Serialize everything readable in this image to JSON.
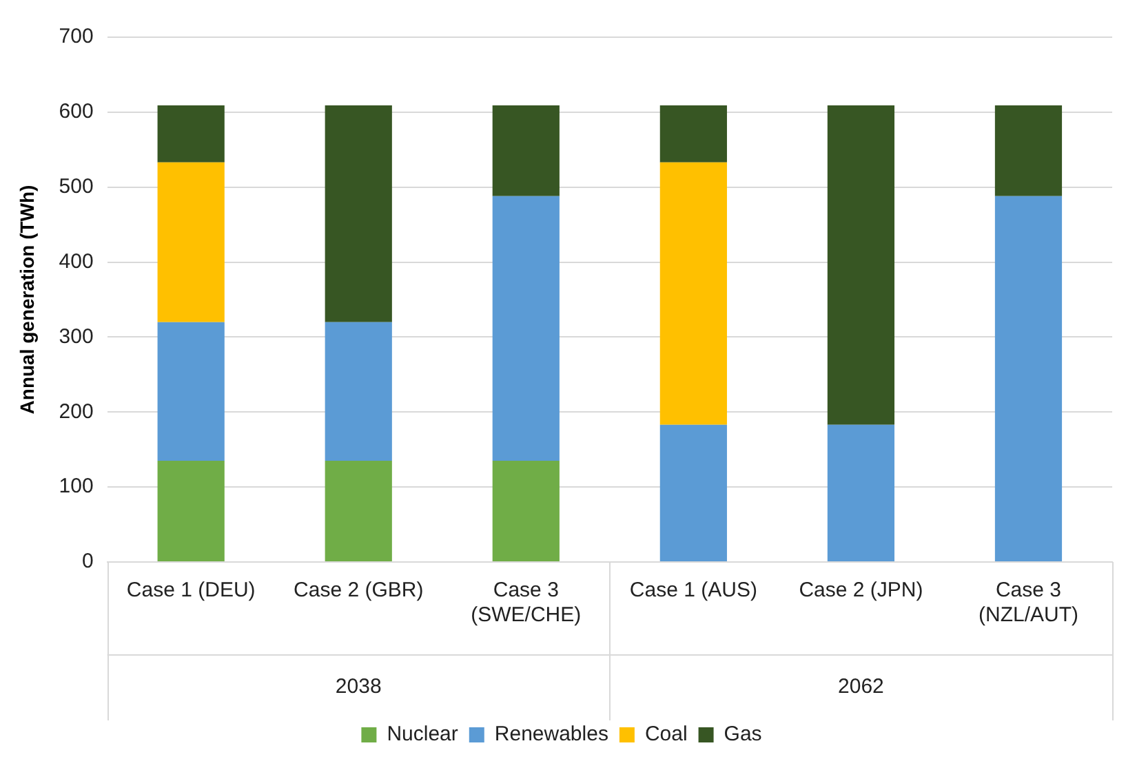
{
  "chart_data": {
    "type": "bar",
    "stacked": true,
    "ylabel": "Annual generation (TWh)",
    "categories": [
      "Case 1 (DEU)",
      "Case 2 (GBR)",
      "Case 3 (SWE/CHE)",
      "Case 1 (AUS)",
      "Case 2 (JPN)",
      "Case 3 (NZL/AUT)"
    ],
    "series": [
      {
        "name": "Nuclear",
        "color": "#70ad47",
        "values": [
          135,
          135,
          135,
          0,
          0,
          0
        ]
      },
      {
        "name": "Renewables",
        "color": "#5b9bd5",
        "values": [
          185,
          185,
          353,
          183,
          183,
          488
        ]
      },
      {
        "name": "Coal",
        "color": "#ffc000",
        "values": [
          213,
          0,
          0,
          350,
          0,
          0
        ]
      },
      {
        "name": "Gas",
        "color": "#375623",
        "values": [
          76,
          289,
          121,
          76,
          426,
          121
        ]
      }
    ],
    "annotations": [
      "2038",
      "2062"
    ],
    "ylim": [
      0,
      700
    ],
    "yticks": [
      0,
      100,
      200,
      300,
      400,
      500,
      600,
      700
    ],
    "grid": "y",
    "legend": "bottom"
  }
}
